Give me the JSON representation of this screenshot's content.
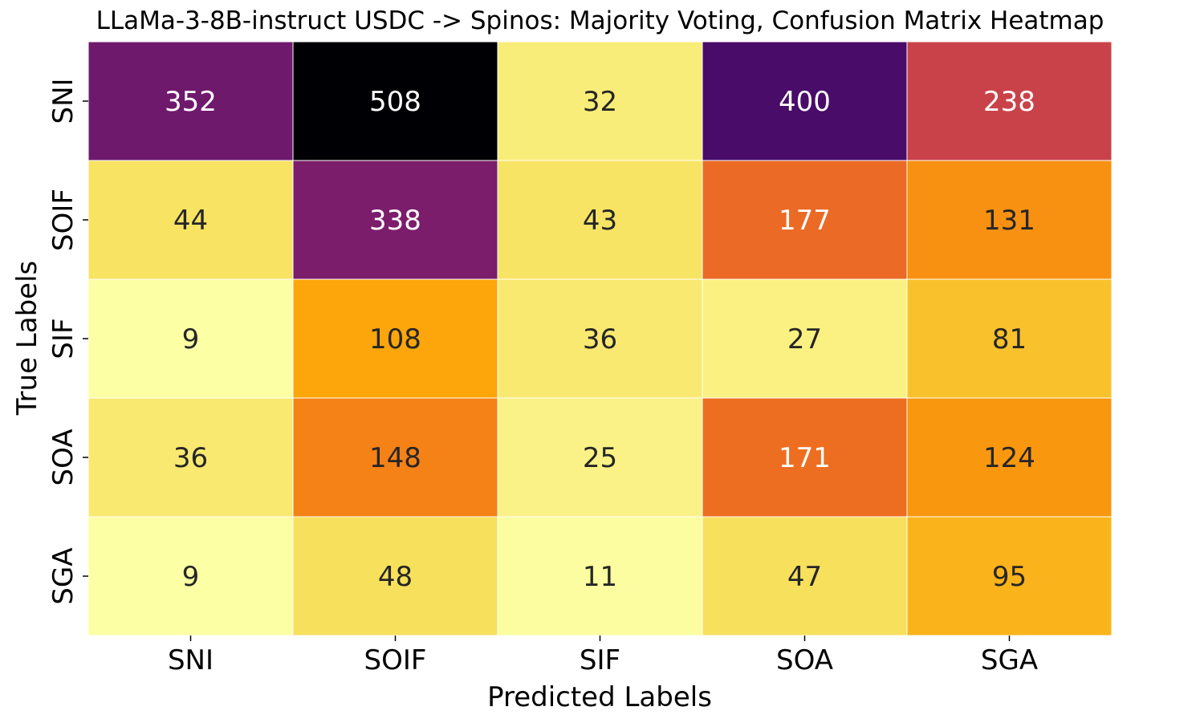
{
  "chart_data": {
    "type": "heatmap",
    "title": "LLaMa-3-8B-instruct USDC -> Spinos: Majority Voting, Confusion Matrix Heatmap",
    "xlabel": "Predicted Labels",
    "ylabel": "True Labels",
    "x_categories": [
      "SNI",
      "SOIF",
      "SIF",
      "SOA",
      "SGA"
    ],
    "y_categories": [
      "SNI",
      "SOIF",
      "SIF",
      "SOA",
      "SGA"
    ],
    "values": [
      [
        352,
        508,
        32,
        400,
        238
      ],
      [
        44,
        338,
        43,
        177,
        131
      ],
      [
        9,
        108,
        36,
        27,
        81
      ],
      [
        36,
        148,
        25,
        171,
        124
      ],
      [
        9,
        48,
        11,
        47,
        95
      ]
    ],
    "colormap": "inferno_r",
    "annotated": true,
    "colorbar": false,
    "grid_line_color": "#ffffff",
    "text_dark": "#262626",
    "text_light": "#ffffff"
  }
}
